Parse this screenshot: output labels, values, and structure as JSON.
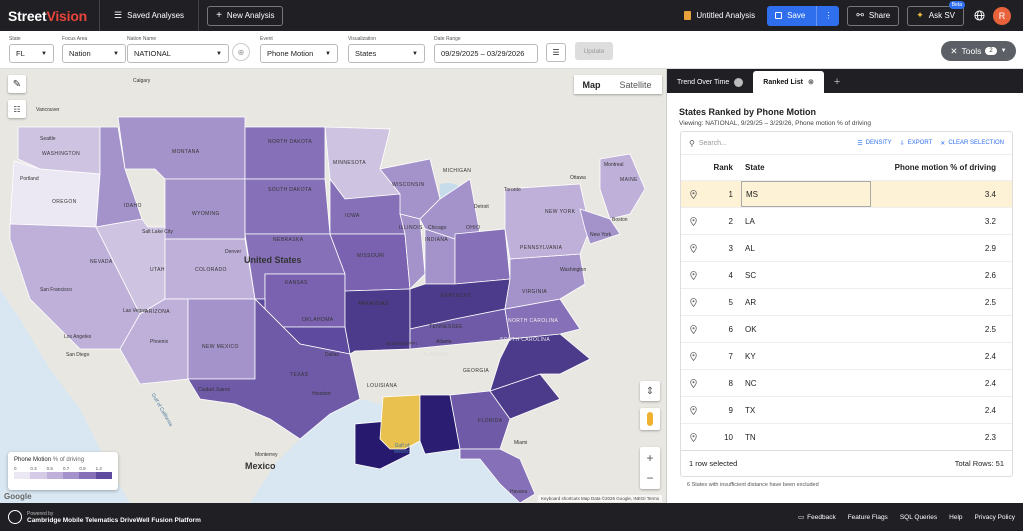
{
  "topbar": {
    "logo_a": "Street",
    "logo_b": "Vision",
    "saved_analyses": "Saved Analyses",
    "new_analysis": "New Analysis",
    "analysis_name": "Untitled Analysis",
    "save": "Save",
    "share": "Share",
    "ask": "Ask SV",
    "ask_badge": "Beta",
    "avatar": "R"
  },
  "filters": {
    "state": {
      "label": "State",
      "value": "FL"
    },
    "focus": {
      "label": "Focus Area",
      "value": "Nation"
    },
    "nation": {
      "label": "Nation Name",
      "value": "NATIONAL"
    },
    "event": {
      "label": "Event",
      "value": "Phone Motion"
    },
    "viz": {
      "label": "Visualization",
      "value": "States"
    },
    "date": {
      "label": "Date Range",
      "value": "09/29/2025 – 03/29/2026"
    },
    "update": "Update",
    "tools": "Tools",
    "tools_count": "2"
  },
  "map": {
    "tab_map": "Map",
    "tab_satellite": "Satellite",
    "country_us": "United States",
    "country_mx": "Mexico",
    "gulf": "Gulf of Mexico",
    "gulf_ca": "Gulf of California",
    "google": "Google",
    "attribution": "Keyboard shortcuts   Map Data ©2026 Google, INEGI   Terms",
    "legend": {
      "title": "Phone Motion",
      "unit": "% of driving",
      "ticks": [
        "0",
        "0.3",
        "0.5",
        "0.7",
        "0.9",
        "1.2"
      ],
      "colors": [
        "#ece8f3",
        "#d5cbe6",
        "#bfb0da",
        "#a493ca",
        "#8670b8",
        "#5e4a9e"
      ]
    },
    "states": [
      "WASHINGTON",
      "OREGON",
      "IDAHO",
      "MONTANA",
      "WYOMING",
      "NEVADA",
      "UTAH",
      "COLORADO",
      "ARIZONA",
      "NEW MEXICO",
      "NORTH DAKOTA",
      "SOUTH DAKOTA",
      "NEBRASKA",
      "KANSAS",
      "OKLAHOMA",
      "TEXAS",
      "MINNESOTA",
      "IOWA",
      "MISSOURI",
      "ARKANSAS",
      "LOUISIANA",
      "WISCONSIN",
      "ILLINOIS",
      "MICHIGAN",
      "INDIANA",
      "OHIO",
      "KENTUCKY",
      "TENNESSEE",
      "MISSISSIPPI",
      "ALABAMA",
      "GEORGIA",
      "FLORIDA",
      "SOUTH CAROLINA",
      "NORTH CAROLINA",
      "VIRGINIA",
      "PENNSYLVANIA",
      "NEW YORK",
      "MAINE"
    ],
    "cities": [
      "Calgary",
      "Vancouver",
      "Seattle",
      "Portland",
      "San Francisco",
      "Los Angeles",
      "San Diego",
      "Las Vegas",
      "Phoenix",
      "Denver",
      "Dallas",
      "Houston",
      "Chicago",
      "Detroit",
      "Toronto",
      "Ottawa",
      "Montreal",
      "Boston",
      "New York",
      "Washington",
      "Atlanta",
      "Miami",
      "Havana",
      "Monterrey",
      "Ciudad Juarez",
      "Salt Lake City"
    ]
  },
  "panel": {
    "tabs": [
      "Trend Over Time",
      "Ranked List"
    ],
    "title": "States Ranked by Phone Motion",
    "subtitle": "Viewing: NATIONAL, 9/29/25 – 3/29/26, Phone motion % of driving",
    "search_placeholder": "Search...",
    "density": "DENSITY",
    "export": "EXPORT",
    "clear": "CLEAR SELECTION",
    "headers": {
      "rank": "Rank",
      "state": "State",
      "value": "Phone motion % of driving"
    },
    "rows": [
      {
        "rank": "1",
        "state": "MS",
        "value": "3.4"
      },
      {
        "rank": "2",
        "state": "LA",
        "value": "3.2"
      },
      {
        "rank": "3",
        "state": "AL",
        "value": "2.9"
      },
      {
        "rank": "4",
        "state": "SC",
        "value": "2.6"
      },
      {
        "rank": "5",
        "state": "AR",
        "value": "2.5"
      },
      {
        "rank": "6",
        "state": "OK",
        "value": "2.5"
      },
      {
        "rank": "7",
        "state": "KY",
        "value": "2.4"
      },
      {
        "rank": "8",
        "state": "NC",
        "value": "2.4"
      },
      {
        "rank": "9",
        "state": "TX",
        "value": "2.4"
      },
      {
        "rank": "10",
        "state": "TN",
        "value": "2.3"
      }
    ],
    "selected_text": "1 row selected",
    "total_rows": "Total Rows: 51",
    "excluded_note": "6 States with insufficient distance have been excluded"
  },
  "footer": {
    "powered_by": "Powered by",
    "platform": "Cambridge Mobile Telematics DriveWell Fusion Platform",
    "links": [
      "Feedback",
      "Feature Flags",
      "SQL Queries",
      "Help",
      "Privacy Policy"
    ]
  }
}
